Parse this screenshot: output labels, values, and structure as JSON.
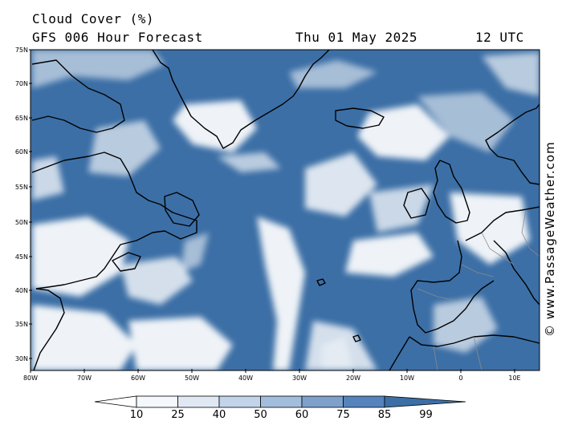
{
  "header": {
    "title": "Cloud Cover (%)",
    "subtitle": "GFS 006 Hour Forecast",
    "date": "Thu 01 May 2025",
    "time": "12 UTC"
  },
  "credit": "© www.PassageWeather.com",
  "map": {
    "lat_labels": [
      "75N",
      "70N",
      "65N",
      "60N",
      "55N",
      "50N",
      "45N",
      "40N",
      "35N",
      "30N"
    ],
    "lon_labels": [
      "80W",
      "70W",
      "60W",
      "50W",
      "40W",
      "30W",
      "20W",
      "10W",
      "0",
      "10E"
    ],
    "colors": {
      "ocean_cloud": "#3c6fa6",
      "clear": "#ffffff",
      "coast": "#000000"
    }
  },
  "legend": {
    "ticks": [
      "10",
      "25",
      "40",
      "50",
      "60",
      "75",
      "85",
      "99"
    ],
    "colors": [
      "#ffffff",
      "#f4f7fb",
      "#dfe8f3",
      "#c2d4e9",
      "#a2bedc",
      "#7da1cb",
      "#5584bc",
      "#3c6fa6"
    ]
  }
}
